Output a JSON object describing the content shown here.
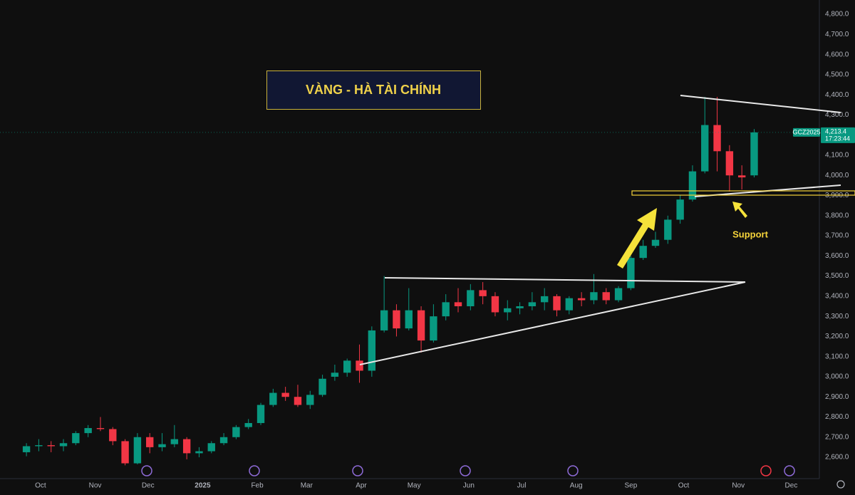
{
  "chart_data": {
    "type": "candlestick",
    "title": "VÀNG - HÀ TÀI CHÍNH",
    "annotation": "Support",
    "symbol": "GCZ2025",
    "last_price_label": "4,213.4",
    "countdown": "17:23:44",
    "up_color": "#089981",
    "down_color": "#f23645",
    "grid": false,
    "x": [
      16,
      23,
      30,
      37,
      44,
      51,
      58,
      65,
      72,
      79,
      86,
      93,
      100,
      107,
      114,
      121,
      128,
      135,
      142,
      149,
      156,
      163,
      170,
      177,
      184,
      191,
      198,
      205,
      212,
      219,
      226,
      233,
      240,
      247,
      254,
      261,
      268,
      275,
      282,
      289,
      296,
      303,
      310,
      317,
      324,
      331,
      338,
      345,
      352,
      359,
      366,
      373,
      380,
      387,
      394,
      401,
      408,
      415,
      422,
      429
    ],
    "open": [
      2625,
      2655,
      2660,
      2655,
      2670,
      2720,
      2745,
      2740,
      2680,
      2570,
      2700,
      2650,
      2665,
      2690,
      2620,
      2630,
      2670,
      2700,
      2750,
      2770,
      2860,
      2920,
      2900,
      2860,
      2910,
      3000,
      3020,
      3080,
      3030,
      3230,
      3330,
      3240,
      3330,
      3180,
      3300,
      3370,
      3350,
      3430,
      3400,
      3320,
      3340,
      3350,
      3370,
      3400,
      3330,
      3390,
      3380,
      3420,
      3380,
      3440,
      3590,
      3650,
      3680,
      3780,
      3880,
      4020,
      4250,
      4120,
      4000,
      4000
    ],
    "high": [
      2670,
      2690,
      2680,
      2690,
      2730,
      2760,
      2800,
      2750,
      2690,
      2720,
      2720,
      2720,
      2760,
      2700,
      2650,
      2680,
      2720,
      2760,
      2790,
      2870,
      2940,
      2950,
      2960,
      2930,
      3010,
      3060,
      3090,
      3160,
      3250,
      3500,
      3360,
      3440,
      3350,
      3360,
      3410,
      3440,
      3460,
      3470,
      3420,
      3380,
      3370,
      3420,
      3440,
      3410,
      3400,
      3420,
      3510,
      3440,
      3450,
      3600,
      3680,
      3720,
      3800,
      3900,
      4050,
      4390,
      4390,
      4150,
      4050,
      4230
    ],
    "low": [
      2605,
      2630,
      2625,
      2630,
      2660,
      2700,
      2730,
      2660,
      2560,
      2565,
      2620,
      2630,
      2650,
      2590,
      2600,
      2620,
      2660,
      2690,
      2740,
      2760,
      2850,
      2880,
      2850,
      2840,
      2900,
      2980,
      3000,
      2970,
      3000,
      3220,
      3200,
      3230,
      3120,
      3170,
      3280,
      3320,
      3330,
      3360,
      3300,
      3280,
      3310,
      3330,
      3330,
      3300,
      3310,
      3350,
      3360,
      3360,
      3370,
      3430,
      3580,
      3640,
      3660,
      3760,
      3870,
      4010,
      4020,
      3920,
      3930,
      3990
    ],
    "close": [
      2655,
      2660,
      2655,
      2670,
      2720,
      2745,
      2740,
      2680,
      2570,
      2700,
      2650,
      2665,
      2690,
      2620,
      2630,
      2670,
      2700,
      2750,
      2770,
      2860,
      2920,
      2900,
      2860,
      2910,
      2990,
      3020,
      3080,
      3030,
      3230,
      3330,
      3240,
      3330,
      3180,
      3300,
      3370,
      3350,
      3430,
      3400,
      3320,
      3340,
      3350,
      3370,
      3400,
      3330,
      3390,
      3380,
      3420,
      3380,
      3440,
      3590,
      3650,
      3680,
      3780,
      3880,
      4020,
      4250,
      4120,
      4000,
      3990,
      4213.4
    ],
    "xlim": [
      1,
      466
    ],
    "xticks": [
      {
        "value": 24,
        "label": "Oct"
      },
      {
        "value": 55,
        "label": "Nov"
      },
      {
        "value": 85,
        "label": "Dec"
      },
      {
        "value": 116,
        "label": "2025"
      },
      {
        "value": 147,
        "label": "Feb"
      },
      {
        "value": 175,
        "label": "Mar"
      },
      {
        "value": 206,
        "label": "Apr"
      },
      {
        "value": 236,
        "label": "May"
      },
      {
        "value": 267,
        "label": "Jun"
      },
      {
        "value": 297,
        "label": "Jul"
      },
      {
        "value": 328,
        "label": "Aug"
      },
      {
        "value": 359,
        "label": "Sep"
      },
      {
        "value": 389,
        "label": "Oct"
      },
      {
        "value": 420,
        "label": "Nov"
      },
      {
        "value": 450,
        "label": "Dec"
      }
    ],
    "ylim": [
      2494,
      4871
    ],
    "yticks": [
      {
        "value": 2600,
        "label": "2,600.0"
      },
      {
        "value": 2700,
        "label": "2,700.0"
      },
      {
        "value": 2800,
        "label": "2,800.0"
      },
      {
        "value": 2900,
        "label": "2,900.0"
      },
      {
        "value": 3000,
        "label": "3,000.0"
      },
      {
        "value": 3100,
        "label": "3,100.0"
      },
      {
        "value": 3200,
        "label": "3,200.0"
      },
      {
        "value": 3300,
        "label": "3,300.0"
      },
      {
        "value": 3400,
        "label": "3,400.0"
      },
      {
        "value": 3500,
        "label": "3,500.0"
      },
      {
        "value": 3600,
        "label": "3,600.0"
      },
      {
        "value": 3700,
        "label": "3,700.0"
      },
      {
        "value": 3800,
        "label": "3,800.0"
      },
      {
        "value": 3900,
        "label": "3,900.0"
      },
      {
        "value": 4000,
        "label": "4,000.0"
      },
      {
        "value": 4100,
        "label": "4,100.0"
      },
      {
        "value": 4200,
        "label": "4,200.0"
      },
      {
        "value": 4300,
        "label": "4,300.0"
      },
      {
        "value": 4400,
        "label": "4,400.0"
      },
      {
        "value": 4500,
        "label": "4,500.0"
      },
      {
        "value": 4600,
        "label": "4,600.0"
      },
      {
        "value": 4700,
        "label": "4,700.0"
      },
      {
        "value": 4800,
        "label": "4,800.0"
      }
    ]
  }
}
